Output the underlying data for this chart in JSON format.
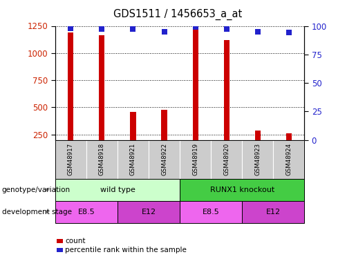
{
  "title": "GDS1511 / 1456653_a_at",
  "samples": [
    "GSM48917",
    "GSM48918",
    "GSM48921",
    "GSM48922",
    "GSM48919",
    "GSM48920",
    "GSM48923",
    "GSM48924"
  ],
  "counts": [
    1190,
    1165,
    460,
    478,
    1220,
    1120,
    285,
    258
  ],
  "percentile_ranks": [
    98,
    97,
    97,
    95,
    99,
    97,
    95,
    94
  ],
  "ylim_left": [
    200,
    1250
  ],
  "ylim_right": [
    0,
    100
  ],
  "yticks_left": [
    250,
    500,
    750,
    1000,
    1250
  ],
  "yticks_right": [
    0,
    25,
    50,
    75,
    100
  ],
  "bar_color": "#cc0000",
  "dot_color": "#2222cc",
  "bar_width": 0.18,
  "genotype_groups": [
    {
      "label": "wild type",
      "start": 0,
      "end": 4,
      "color": "#ccffcc"
    },
    {
      "label": "RUNX1 knockout",
      "start": 4,
      "end": 8,
      "color": "#44cc44"
    }
  ],
  "dev_stage_groups": [
    {
      "label": "E8.5",
      "start": 0,
      "end": 2,
      "color": "#ee66ee"
    },
    {
      "label": "E12",
      "start": 2,
      "end": 4,
      "color": "#cc44cc"
    },
    {
      "label": "E8.5",
      "start": 4,
      "end": 6,
      "color": "#ee66ee"
    },
    {
      "label": "E12",
      "start": 6,
      "end": 8,
      "color": "#cc44cc"
    }
  ],
  "row_labels": [
    "genotype/variation",
    "development stage"
  ],
  "legend_count_label": "count",
  "legend_pct_label": "percentile rank within the sample",
  "tick_label_color_left": "#cc2200",
  "tick_label_color_right": "#2222cc",
  "sample_box_color": "#cccccc",
  "background_color": "#ffffff"
}
